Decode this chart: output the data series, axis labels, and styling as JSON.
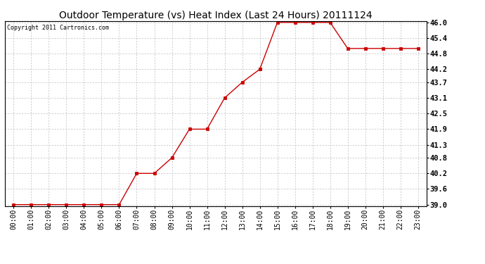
{
  "title": "Outdoor Temperature (vs) Heat Index (Last 24 Hours) 20111124",
  "copyright": "Copyright 2011 Cartronics.com",
  "x_labels": [
    "00:00",
    "01:00",
    "02:00",
    "03:00",
    "04:00",
    "05:00",
    "06:00",
    "07:00",
    "08:00",
    "09:00",
    "10:00",
    "11:00",
    "12:00",
    "13:00",
    "14:00",
    "15:00",
    "16:00",
    "17:00",
    "18:00",
    "19:00",
    "20:00",
    "21:00",
    "22:00",
    "23:00"
  ],
  "y_values": [
    39.0,
    39.0,
    39.0,
    39.0,
    39.0,
    39.0,
    39.0,
    40.2,
    40.2,
    40.8,
    41.9,
    41.9,
    43.1,
    43.7,
    44.2,
    46.0,
    46.0,
    46.0,
    46.0,
    45.0,
    45.0,
    45.0,
    45.0,
    45.0
  ],
  "ylim_min": 39.0,
  "ylim_max": 46.0,
  "yticks": [
    39.0,
    39.6,
    40.2,
    40.8,
    41.3,
    41.9,
    42.5,
    43.1,
    43.7,
    44.2,
    44.8,
    45.4,
    46.0
  ],
  "line_color": "#cc0000",
  "marker": "s",
  "marker_size": 2.5,
  "bg_color": "#ffffff",
  "grid_color": "#aaaaaa",
  "title_fontsize": 10,
  "copyright_fontsize": 6,
  "tick_fontsize": 7,
  "ytick_fontsize": 7.5
}
